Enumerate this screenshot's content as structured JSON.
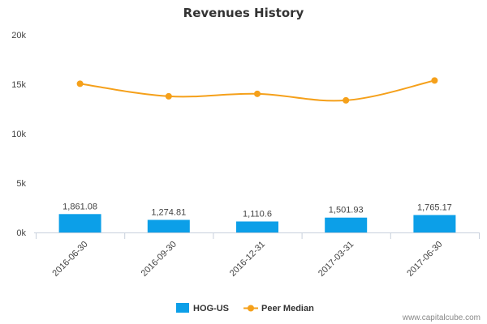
{
  "chart_data": {
    "type": "bar",
    "title": "Revenues History",
    "categories": [
      "2016-06-30",
      "2016-09-30",
      "2016-12-31",
      "2017-03-31",
      "2017-06-30"
    ],
    "y_ticks": [
      "0k",
      "5k",
      "10k",
      "15k",
      "20k"
    ],
    "ylim": [
      0,
      20000
    ],
    "grid": false,
    "legend_position": "bottom",
    "series": [
      {
        "name": "HOG-US",
        "type": "bar",
        "color": "#0c9fe8",
        "values": [
          1861.08,
          1274.81,
          1110.6,
          1501.93,
          1765.17
        ],
        "labels": [
          "1,861.08",
          "1,274.81",
          "1,110.6",
          "1,501.93",
          "1,765.17"
        ]
      },
      {
        "name": "Peer Median",
        "type": "line",
        "color": "#f5a01a",
        "values": [
          15050,
          13780,
          14030,
          13370,
          15380
        ]
      }
    ]
  },
  "credit": "www.capitalcube.com"
}
